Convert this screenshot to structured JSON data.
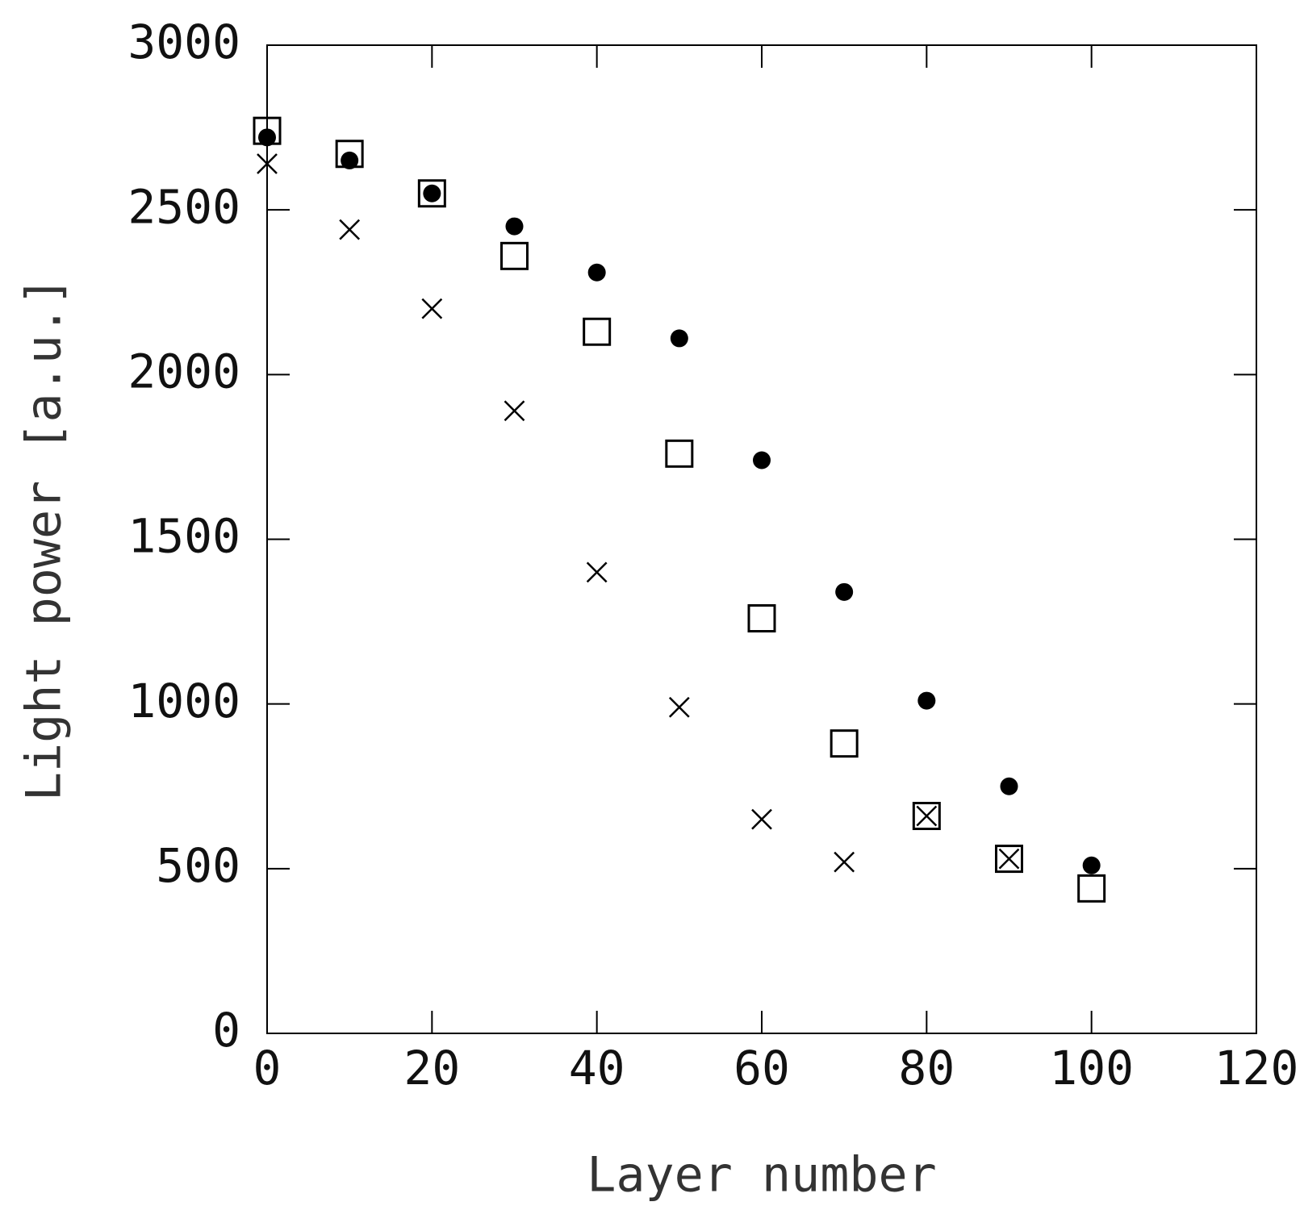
{
  "chart_data": {
    "type": "scatter",
    "x_label": "Layer number",
    "y_label": "Light power [a.u.]",
    "x": [
      0,
      10,
      20,
      30,
      40,
      50,
      60,
      70,
      80,
      90,
      100
    ],
    "series": [
      {
        "marker": "circle",
        "color": "#000000",
        "values": [
          2720,
          2650,
          2550,
          2450,
          2310,
          2110,
          1740,
          1340,
          1010,
          750,
          510
        ]
      },
      {
        "marker": "square",
        "color": "#000000",
        "values": [
          2740,
          2670,
          2550,
          2360,
          2130,
          1760,
          1260,
          880,
          660,
          530,
          440
        ]
      },
      {
        "marker": "x",
        "color": "#000000",
        "values": [
          2640,
          2440,
          2200,
          1890,
          1400,
          990,
          650,
          520,
          660,
          530,
          null
        ]
      }
    ],
    "xlim": [
      0,
      120
    ],
    "xticks": [
      0,
      20,
      40,
      60,
      80,
      100,
      120
    ],
    "ylim": [
      0,
      3000
    ],
    "yticks": [
      0,
      500,
      1000,
      1500,
      2000,
      2500,
      3000
    ],
    "grid": false
  }
}
